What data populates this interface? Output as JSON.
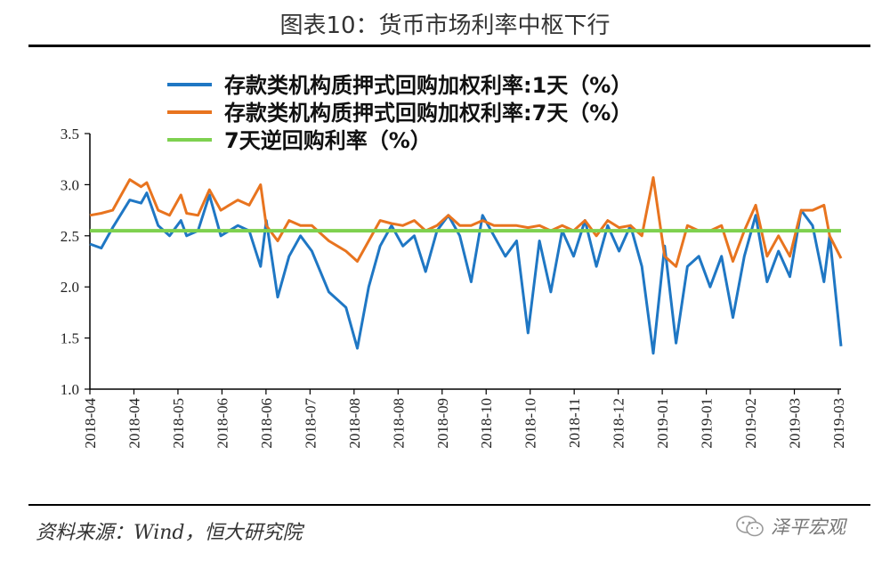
{
  "header": {
    "title": "图表10：货币市场利率中枢下行"
  },
  "footer": {
    "source": "资料来源：Wind，恒大研究院",
    "brand": "泽平宏观"
  },
  "colors": {
    "series_1d": "#1f77c4",
    "series_7d": "#e8741f",
    "series_reverse_repo": "#7ed14f",
    "axis": "#000000"
  },
  "chart_data": {
    "type": "line",
    "ylim": [
      1.0,
      3.5
    ],
    "yticks": [
      "1.0",
      "1.5",
      "2.0",
      "2.5",
      "3.0",
      "3.5"
    ],
    "xtick_labels": [
      "2018-04",
      "2018-04",
      "2018-05",
      "2018-06",
      "2018-06",
      "2018-07",
      "2018-08",
      "2018-08",
      "2018-09",
      "2018-10",
      "2018-10",
      "2018-11",
      "2018-12",
      "2019-01",
      "2019-01",
      "2019-02",
      "2019-03",
      "2019-03"
    ],
    "grid": false,
    "legend_position": "top",
    "series": [
      {
        "key": "d1",
        "name": "存款类机构质押式回购加权利率:1天（%）",
        "points": [
          [
            0,
            2.42
          ],
          [
            2,
            2.38
          ],
          [
            4,
            2.58
          ],
          [
            7,
            2.85
          ],
          [
            9,
            2.82
          ],
          [
            10,
            2.92
          ],
          [
            12,
            2.6
          ],
          [
            14,
            2.5
          ],
          [
            16,
            2.65
          ],
          [
            17,
            2.5
          ],
          [
            19,
            2.55
          ],
          [
            21,
            2.9
          ],
          [
            23,
            2.5
          ],
          [
            26,
            2.6
          ],
          [
            28,
            2.55
          ],
          [
            30,
            2.2
          ],
          [
            31,
            2.65
          ],
          [
            33,
            1.9
          ],
          [
            35,
            2.3
          ],
          [
            37,
            2.5
          ],
          [
            39,
            2.35
          ],
          [
            42,
            1.95
          ],
          [
            45,
            1.8
          ],
          [
            47,
            1.4
          ],
          [
            49,
            2.0
          ],
          [
            51,
            2.4
          ],
          [
            53,
            2.6
          ],
          [
            55,
            2.4
          ],
          [
            57,
            2.5
          ],
          [
            59,
            2.15
          ],
          [
            61,
            2.55
          ],
          [
            63,
            2.7
          ],
          [
            65,
            2.5
          ],
          [
            67,
            2.05
          ],
          [
            69,
            2.7
          ],
          [
            71,
            2.5
          ],
          [
            73,
            2.3
          ],
          [
            75,
            2.45
          ],
          [
            77,
            1.55
          ],
          [
            79,
            2.45
          ],
          [
            81,
            1.95
          ],
          [
            83,
            2.55
          ],
          [
            85,
            2.3
          ],
          [
            87,
            2.65
          ],
          [
            89,
            2.2
          ],
          [
            91,
            2.6
          ],
          [
            93,
            2.35
          ],
          [
            95,
            2.6
          ],
          [
            97,
            2.2
          ],
          [
            99,
            1.35
          ],
          [
            101,
            2.4
          ],
          [
            103,
            1.45
          ],
          [
            105,
            2.2
          ],
          [
            107,
            2.3
          ],
          [
            109,
            2.0
          ],
          [
            111,
            2.3
          ],
          [
            113,
            1.7
          ],
          [
            115,
            2.3
          ],
          [
            117,
            2.7
          ],
          [
            119,
            2.05
          ],
          [
            121,
            2.35
          ],
          [
            123,
            2.1
          ],
          [
            125,
            2.75
          ],
          [
            127,
            2.6
          ],
          [
            129,
            2.05
          ],
          [
            130,
            2.5
          ],
          [
            132,
            1.42
          ]
        ]
      },
      {
        "key": "d7",
        "name": "存款类机构质押式回购加权利率:7天（%）",
        "points": [
          [
            0,
            2.7
          ],
          [
            2,
            2.72
          ],
          [
            4,
            2.75
          ],
          [
            7,
            3.05
          ],
          [
            9,
            2.98
          ],
          [
            10,
            3.02
          ],
          [
            12,
            2.75
          ],
          [
            14,
            2.7
          ],
          [
            16,
            2.9
          ],
          [
            17,
            2.72
          ],
          [
            19,
            2.7
          ],
          [
            21,
            2.95
          ],
          [
            23,
            2.75
          ],
          [
            26,
            2.85
          ],
          [
            28,
            2.8
          ],
          [
            30,
            3.0
          ],
          [
            31,
            2.6
          ],
          [
            33,
            2.45
          ],
          [
            35,
            2.65
          ],
          [
            37,
            2.6
          ],
          [
            39,
            2.6
          ],
          [
            42,
            2.45
          ],
          [
            45,
            2.35
          ],
          [
            47,
            2.25
          ],
          [
            49,
            2.45
          ],
          [
            51,
            2.65
          ],
          [
            53,
            2.62
          ],
          [
            55,
            2.6
          ],
          [
            57,
            2.65
          ],
          [
            59,
            2.55
          ],
          [
            61,
            2.6
          ],
          [
            63,
            2.7
          ],
          [
            65,
            2.6
          ],
          [
            67,
            2.6
          ],
          [
            69,
            2.65
          ],
          [
            71,
            2.6
          ],
          [
            73,
            2.6
          ],
          [
            75,
            2.6
          ],
          [
            77,
            2.58
          ],
          [
            79,
            2.6
          ],
          [
            81,
            2.55
          ],
          [
            83,
            2.6
          ],
          [
            85,
            2.55
          ],
          [
            87,
            2.65
          ],
          [
            89,
            2.5
          ],
          [
            91,
            2.65
          ],
          [
            93,
            2.58
          ],
          [
            95,
            2.6
          ],
          [
            97,
            2.5
          ],
          [
            99,
            3.07
          ],
          [
            101,
            2.3
          ],
          [
            103,
            2.2
          ],
          [
            105,
            2.6
          ],
          [
            107,
            2.55
          ],
          [
            109,
            2.55
          ],
          [
            111,
            2.6
          ],
          [
            113,
            2.25
          ],
          [
            115,
            2.55
          ],
          [
            117,
            2.8
          ],
          [
            119,
            2.3
          ],
          [
            121,
            2.5
          ],
          [
            123,
            2.3
          ],
          [
            125,
            2.75
          ],
          [
            127,
            2.75
          ],
          [
            129,
            2.8
          ],
          [
            130,
            2.5
          ],
          [
            132,
            2.28
          ]
        ]
      },
      {
        "key": "rr",
        "name": "7天逆回购利率（%）",
        "points": [
          [
            0,
            2.55
          ],
          [
            132,
            2.55
          ]
        ]
      }
    ]
  }
}
